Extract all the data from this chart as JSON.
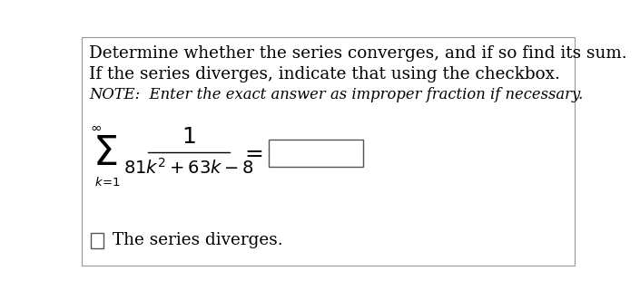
{
  "bg_color": "#ffffff",
  "title_line1": "Determine whether the series converges, and if so find its sum.",
  "title_line2": "If the series diverges, indicate that using the checkbox.",
  "title_line3": "NOTE:  Enter the exact answer as improper fraction if necessary.",
  "checkbox_label": "The series diverges.",
  "fig_width": 7.05,
  "fig_height": 3.31,
  "dpi": 100,
  "fs_title": 13.2,
  "fs_note": 11.8,
  "fs_sigma": 32,
  "fs_infty": 11,
  "fs_lower": 9.5,
  "fs_num": 18,
  "fs_denom": 14,
  "fs_equals": 18,
  "fs_checkbox_label": 13.2
}
